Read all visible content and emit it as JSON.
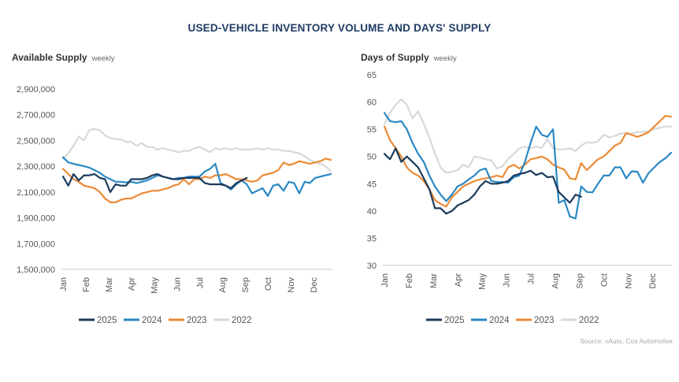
{
  "title": "USED-VEHICLE INVENTORY VOLUME AND DAYS' SUPPLY",
  "source": "Source: vAuto, Cox Automotive",
  "colors": {
    "2025": "#1b3a5c",
    "2024": "#2a88c4",
    "2023": "#ec8a35",
    "2022": "#d8d8d8"
  },
  "chart_data": [
    {
      "type": "line",
      "title": "Available Supply",
      "subtitle": "weekly",
      "xlabel": "",
      "ylabel": "",
      "ylim": [
        1500000,
        2900000
      ],
      "yticks": [
        "2,900,000",
        "2,700,000",
        "2,500,000",
        "2,300,000",
        "2,100,000",
        "1,900,000",
        "1,700,000",
        "1,500,000"
      ],
      "ytick_values": [
        2900000,
        2700000,
        2500000,
        2300000,
        2100000,
        1900000,
        1700000,
        1500000
      ],
      "xticks": [
        "Jan",
        "Feb",
        "Mar",
        "Apr",
        "May",
        "Jun",
        "Jul",
        "Aug",
        "Sep",
        "Oct",
        "Nov",
        "Dec"
      ],
      "grid": false,
      "legend": "bottom",
      "x_unit": "week of year",
      "series": [
        {
          "name": "2025",
          "x": [
            1,
            2,
            3,
            4,
            5,
            6,
            7,
            8,
            9,
            10,
            11,
            12,
            13,
            14,
            15,
            16,
            17,
            18,
            19,
            20,
            21,
            22,
            23,
            24,
            25,
            26,
            27,
            28,
            29,
            30,
            31,
            32,
            33,
            34,
            35,
            36
          ],
          "values": [
            2220000,
            2150000,
            2240000,
            2190000,
            2230000,
            2230000,
            2240000,
            2210000,
            2200000,
            2100000,
            2160000,
            2150000,
            2150000,
            2200000,
            2200000,
            2200000,
            2210000,
            2230000,
            2240000,
            2220000,
            2210000,
            2200000,
            2200000,
            2210000,
            2210000,
            2210000,
            2210000,
            2170000,
            2160000,
            2160000,
            2160000,
            2150000,
            2130000,
            2170000,
            2190000,
            2210000
          ]
        },
        {
          "name": "2024",
          "x": [
            1,
            2,
            3,
            4,
            5,
            6,
            7,
            8,
            9,
            10,
            11,
            12,
            13,
            14,
            15,
            16,
            17,
            18,
            19,
            20,
            21,
            22,
            23,
            24,
            25,
            26,
            27,
            28,
            29,
            30,
            31,
            32,
            33,
            34,
            35,
            36,
            37,
            38,
            39,
            40,
            41,
            42,
            43,
            44,
            45,
            46,
            47,
            48,
            49,
            50,
            51,
            52
          ],
          "values": [
            2370000,
            2330000,
            2320000,
            2310000,
            2300000,
            2290000,
            2270000,
            2250000,
            2220000,
            2200000,
            2180000,
            2180000,
            2175000,
            2180000,
            2170000,
            2180000,
            2190000,
            2210000,
            2230000,
            2220000,
            2210000,
            2200000,
            2210000,
            2210000,
            2220000,
            2220000,
            2220000,
            2260000,
            2280000,
            2320000,
            2170000,
            2150000,
            2120000,
            2160000,
            2190000,
            2160000,
            2090000,
            2110000,
            2130000,
            2070000,
            2150000,
            2160000,
            2110000,
            2180000,
            2170000,
            2090000,
            2180000,
            2170000,
            2210000,
            2220000,
            2230000,
            2240000
          ]
        },
        {
          "name": "2023",
          "x": [
            1,
            2,
            3,
            4,
            5,
            6,
            7,
            8,
            9,
            10,
            11,
            12,
            13,
            14,
            15,
            16,
            17,
            18,
            19,
            20,
            21,
            22,
            23,
            24,
            25,
            26,
            27,
            28,
            29,
            30,
            31,
            32,
            33,
            34,
            35,
            36,
            37,
            38,
            39,
            40,
            41,
            42,
            43,
            44,
            45,
            46,
            47,
            48,
            49,
            50,
            51,
            52
          ],
          "values": [
            2280000,
            2240000,
            2200000,
            2180000,
            2150000,
            2140000,
            2130000,
            2100000,
            2050000,
            2020000,
            2020000,
            2040000,
            2050000,
            2050000,
            2070000,
            2090000,
            2100000,
            2110000,
            2110000,
            2120000,
            2130000,
            2150000,
            2160000,
            2200000,
            2160000,
            2200000,
            2200000,
            2220000,
            2210000,
            2230000,
            2230000,
            2240000,
            2220000,
            2200000,
            2200000,
            2190000,
            2180000,
            2190000,
            2230000,
            2240000,
            2250000,
            2270000,
            2330000,
            2310000,
            2320000,
            2340000,
            2330000,
            2320000,
            2330000,
            2340000,
            2360000,
            2350000
          ]
        },
        {
          "name": "2022",
          "x": [
            1,
            2,
            3,
            4,
            5,
            6,
            7,
            8,
            9,
            10,
            11,
            12,
            13,
            14,
            15,
            16,
            17,
            18,
            19,
            20,
            21,
            22,
            23,
            24,
            25,
            26,
            27,
            28,
            29,
            30,
            31,
            32,
            33,
            34,
            35,
            36,
            37,
            38,
            39,
            40,
            41,
            42,
            43,
            44,
            45,
            46,
            47,
            48,
            49,
            50,
            51,
            52
          ],
          "values": [
            2360000,
            2400000,
            2460000,
            2530000,
            2500000,
            2580000,
            2590000,
            2580000,
            2540000,
            2520000,
            2510000,
            2510000,
            2490000,
            2490000,
            2460000,
            2480000,
            2450000,
            2450000,
            2430000,
            2440000,
            2430000,
            2420000,
            2410000,
            2420000,
            2420000,
            2440000,
            2450000,
            2430000,
            2410000,
            2440000,
            2430000,
            2440000,
            2430000,
            2440000,
            2430000,
            2430000,
            2430000,
            2440000,
            2430000,
            2440000,
            2430000,
            2430000,
            2420000,
            2420000,
            2410000,
            2400000,
            2380000,
            2350000,
            2330000,
            2320000,
            2300000,
            2260000
          ]
        }
      ]
    },
    {
      "type": "line",
      "title": "Days of Supply",
      "subtitle": "weekly",
      "xlabel": "",
      "ylabel": "",
      "ylim": [
        30,
        65
      ],
      "yticks": [
        "65",
        "60",
        "55",
        "50",
        "45",
        "40",
        "35",
        "30"
      ],
      "ytick_values": [
        65,
        60,
        55,
        50,
        45,
        40,
        35,
        30
      ],
      "xticks": [
        "Jan",
        "Feb",
        "Mar",
        "Apr",
        "May",
        "Jun",
        "Jul",
        "Aug",
        "Sep",
        "Oct",
        "Nov",
        "Dec"
      ],
      "grid": false,
      "legend": "bottom",
      "x_unit": "week of year",
      "series": [
        {
          "name": "2025",
          "x": [
            1,
            2,
            3,
            4,
            5,
            6,
            7,
            8,
            9,
            10,
            11,
            12,
            13,
            14,
            15,
            16,
            17,
            18,
            19,
            20,
            21,
            22,
            23,
            24,
            25,
            26,
            27,
            28,
            29,
            30,
            31,
            32,
            33,
            34,
            35,
            36
          ],
          "values": [
            50.5,
            49.5,
            51.5,
            49,
            50,
            49,
            48,
            46,
            44,
            40.5,
            40.5,
            39.5,
            40,
            41,
            41.5,
            42,
            43,
            44.5,
            45.5,
            45,
            45,
            45.2,
            45.5,
            46.5,
            46.8,
            47,
            47.4,
            46.6,
            47,
            46.2,
            46.3,
            43.5,
            42.5,
            41.5,
            43,
            42.6
          ]
        },
        {
          "name": "2024",
          "x": [
            1,
            2,
            3,
            4,
            5,
            6,
            7,
            8,
            9,
            10,
            11,
            12,
            13,
            14,
            15,
            16,
            17,
            18,
            19,
            20,
            21,
            22,
            23,
            24,
            25,
            26,
            27,
            28,
            29,
            30,
            31,
            32,
            33,
            34,
            35,
            36,
            37,
            38,
            39,
            40,
            41,
            42,
            43,
            44,
            45,
            46,
            47,
            48,
            49,
            50,
            51,
            52
          ],
          "values": [
            58,
            56.5,
            56.3,
            56.5,
            55,
            52.5,
            50.5,
            49,
            46.5,
            44.5,
            43,
            41.8,
            43,
            44.5,
            45,
            45.8,
            46.5,
            47.5,
            47.8,
            45.5,
            45.3,
            45.3,
            45.2,
            46.2,
            46.5,
            49,
            52.5,
            55.5,
            54,
            53.6,
            55,
            41.5,
            42,
            39,
            38.6,
            44.5,
            43.5,
            43.4,
            45,
            46.5,
            46.5,
            48,
            48,
            46,
            47.3,
            47.2,
            45.2,
            47,
            48,
            49,
            49.7,
            50.7
          ]
        },
        {
          "name": "2023",
          "x": [
            1,
            2,
            3,
            4,
            5,
            6,
            7,
            8,
            9,
            10,
            11,
            12,
            13,
            14,
            15,
            16,
            17,
            18,
            19,
            20,
            21,
            22,
            23,
            24,
            25,
            26,
            27,
            28,
            29,
            30,
            31,
            32,
            33,
            34,
            35,
            36,
            37,
            38,
            39,
            40,
            41,
            42,
            43,
            44,
            45,
            46,
            47,
            48,
            49,
            50,
            51,
            52
          ],
          "values": [
            55.5,
            53,
            51.5,
            50,
            48,
            47,
            46.5,
            45.5,
            44,
            42,
            41.3,
            40.8,
            42.5,
            43.5,
            44.5,
            45,
            45.5,
            45.8,
            46,
            46.2,
            46.5,
            46.2,
            48,
            48.5,
            47.8,
            48.5,
            49.5,
            49.7,
            50,
            49.5,
            48.5,
            48,
            47.6,
            46,
            45.8,
            48.8,
            47.5,
            48.5,
            49.5,
            50,
            51,
            52,
            52.5,
            54.3,
            54,
            53.6,
            54,
            54.5,
            55.5,
            56.5,
            57.5,
            57.3
          ]
        },
        {
          "name": "2022",
          "x": [
            1,
            2,
            3,
            4,
            5,
            6,
            7,
            8,
            9,
            10,
            11,
            12,
            13,
            14,
            15,
            16,
            17,
            18,
            19,
            20,
            21,
            22,
            23,
            24,
            25,
            26,
            27,
            28,
            29,
            30,
            31,
            32,
            33,
            34,
            35,
            36,
            37,
            38,
            39,
            40,
            41,
            42,
            43,
            44,
            45,
            46,
            47,
            48,
            49,
            50,
            51,
            52
          ],
          "values": [
            56,
            58,
            59.5,
            60.5,
            59.5,
            57,
            58.3,
            56,
            53.5,
            50.5,
            48,
            47,
            47.2,
            47.5,
            48.5,
            48,
            50,
            49.8,
            49.5,
            49.3,
            47.8,
            48.2,
            49.5,
            50.5,
            51.5,
            51.8,
            51.5,
            51.8,
            51.6,
            53.2,
            51.5,
            51.3,
            51.3,
            51.5,
            51,
            52,
            52.6,
            52.5,
            52.8,
            54,
            53.5,
            53.8,
            54.2,
            54.3,
            54.2,
            54.5,
            54.5,
            54.7,
            55,
            55.3,
            55.5,
            55.5
          ]
        }
      ]
    }
  ]
}
